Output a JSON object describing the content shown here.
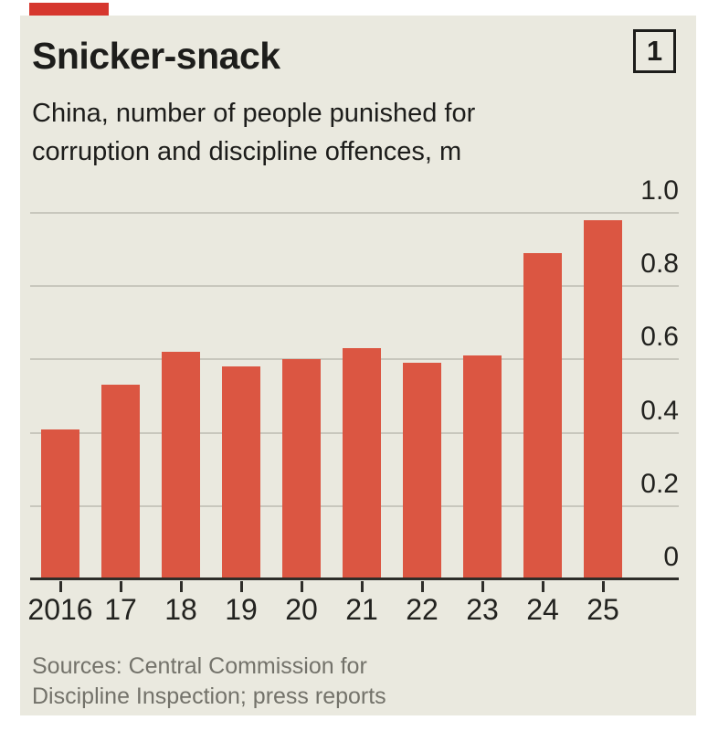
{
  "page": {
    "background_color": "#ffffff"
  },
  "card": {
    "background_color": "#EAE9DF"
  },
  "brand": {
    "red_tab_color": "#D6372E"
  },
  "header": {
    "panel_number": "1",
    "title": "Snicker-snack",
    "subtitle_line1": "China, number of people punished for",
    "subtitle_line2": "corruption and discipline offences, m"
  },
  "chart_data": {
    "type": "bar",
    "title": "Snicker-snack",
    "subtitle": "China, number of people punished for corruption and discipline offences, m",
    "categories": [
      "2016",
      "17",
      "18",
      "19",
      "20",
      "21",
      "22",
      "23",
      "24",
      "25"
    ],
    "values": [
      0.41,
      0.53,
      0.62,
      0.58,
      0.6,
      0.63,
      0.59,
      0.61,
      0.89,
      0.98
    ],
    "ylabel": "m",
    "ylim": [
      0,
      1.0
    ],
    "yticks": [
      0,
      0.2,
      0.4,
      0.6,
      0.8,
      1.0
    ],
    "ytick_labels": [
      "0",
      "0.2",
      "0.4",
      "0.6",
      "0.8",
      "1.0"
    ],
    "grid": true,
    "legend": false,
    "legend_position": "none",
    "bar_color": "#DB5642",
    "gridline_color": "#C8C7BD",
    "axis_color": "#2E2D29"
  },
  "footer": {
    "source_line1": "Sources: Central Commission for",
    "source_line2": "Discipline Inspection; press reports"
  }
}
